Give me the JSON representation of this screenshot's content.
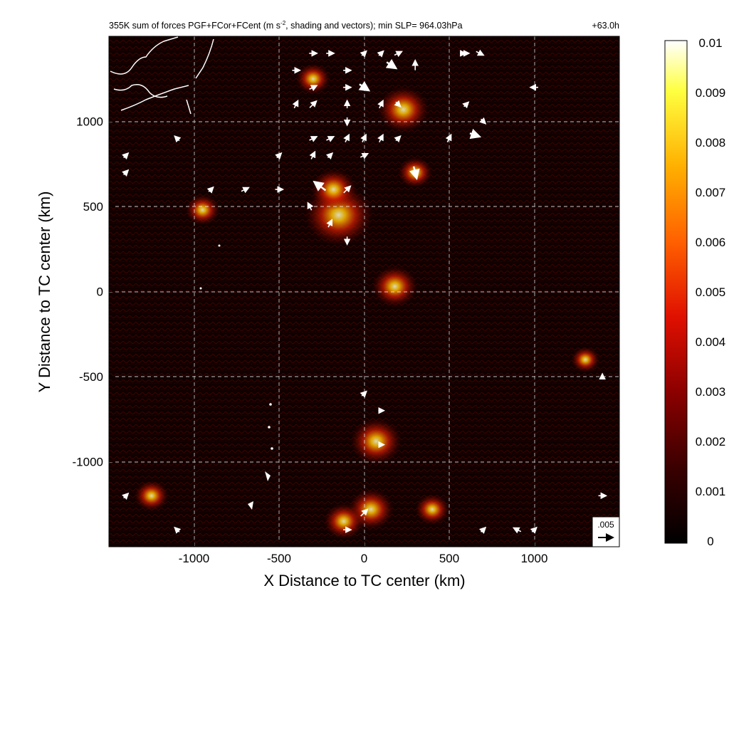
{
  "chart_data": {
    "type": "heatmap",
    "title": "355K sum of forces PGF+FCor+FCent (m s",
    "title_superscript": "-2",
    "title_rest": ", shading and vectors); min SLP= 964.03hPa",
    "forecast_hour": "+63.0h",
    "xlabel": "X Distance to TC center (km)",
    "ylabel": "Y Distance to TC center (km)",
    "xlim": [
      -1500,
      1500
    ],
    "ylim": [
      -1500,
      1500
    ],
    "x_ticks": [
      -1000,
      -500,
      0,
      500,
      1000
    ],
    "y_ticks": [
      1000,
      500,
      0,
      -500,
      -1000
    ],
    "grid": true,
    "colorbar": {
      "min": 0,
      "max": 0.01,
      "ticks": [
        "0.01",
        "0.009",
        "0.008",
        "0.007",
        "0.006",
        "0.005",
        "0.004",
        "0.003",
        "0.002",
        "0.001",
        "0"
      ]
    },
    "reference_vector_label": ".005",
    "hotspots": [
      {
        "x": -150,
        "y": 450,
        "v": 0.01
      },
      {
        "x": -180,
        "y": 600,
        "v": 0.006
      },
      {
        "x": 230,
        "y": 1070,
        "v": 0.007
      },
      {
        "x": 180,
        "y": 30,
        "v": 0.006
      },
      {
        "x": 70,
        "y": -880,
        "v": 0.007
      },
      {
        "x": 40,
        "y": -1280,
        "v": 0.006
      },
      {
        "x": -120,
        "y": -1350,
        "v": 0.005
      },
      {
        "x": 400,
        "y": -1280,
        "v": 0.004
      },
      {
        "x": -1250,
        "y": -1200,
        "v": 0.004
      },
      {
        "x": -950,
        "y": 480,
        "v": 0.004
      },
      {
        "x": 300,
        "y": 700,
        "v": 0.004
      },
      {
        "x": -300,
        "y": 1250,
        "v": 0.004
      },
      {
        "x": 1300,
        "y": -400,
        "v": 0.003
      }
    ],
    "vectors": [
      {
        "x": -300,
        "y": 1400,
        "u": 2,
        "v": 0
      },
      {
        "x": -200,
        "y": 1400,
        "u": 2,
        "v": 0
      },
      {
        "x": 0,
        "y": 1400,
        "u": 1,
        "v": 1
      },
      {
        "x": 100,
        "y": 1400,
        "u": 1,
        "v": 1
      },
      {
        "x": 200,
        "y": 1400,
        "u": 2,
        "v": 1
      },
      {
        "x": 300,
        "y": 1330,
        "u": 0,
        "v": 3
      },
      {
        "x": 160,
        "y": 1330,
        "u": 3,
        "v": -2
      },
      {
        "x": 580,
        "y": 1400,
        "u": 1,
        "v": 0
      },
      {
        "x": 600,
        "y": 1400,
        "u": 1,
        "v": 0
      },
      {
        "x": 680,
        "y": 1400,
        "u": 2,
        "v": -1
      },
      {
        "x": 1000,
        "y": 1200,
        "u": -2,
        "v": 0
      },
      {
        "x": -400,
        "y": 1300,
        "u": 2,
        "v": 0
      },
      {
        "x": -100,
        "y": 1300,
        "u": 2,
        "v": 0
      },
      {
        "x": -300,
        "y": 1200,
        "u": 2,
        "v": 1
      },
      {
        "x": 0,
        "y": 1200,
        "u": 3,
        "v": -2
      },
      {
        "x": -100,
        "y": 1200,
        "u": 2,
        "v": 0
      },
      {
        "x": -400,
        "y": 1100,
        "u": 1,
        "v": 2
      },
      {
        "x": -300,
        "y": 1100,
        "u": 2,
        "v": 2
      },
      {
        "x": -100,
        "y": 1100,
        "u": 0,
        "v": 2
      },
      {
        "x": 100,
        "y": 1100,
        "u": 1,
        "v": 2
      },
      {
        "x": 200,
        "y": 1100,
        "u": 1,
        "v": -1
      },
      {
        "x": 600,
        "y": 1100,
        "u": 1,
        "v": 1
      },
      {
        "x": 700,
        "y": 1000,
        "u": 1,
        "v": -1
      },
      {
        "x": 650,
        "y": 920,
        "u": 3,
        "v": -1
      },
      {
        "x": -100,
        "y": 1000,
        "u": 0,
        "v": -2
      },
      {
        "x": -300,
        "y": 900,
        "u": 2,
        "v": 1
      },
      {
        "x": -200,
        "y": 900,
        "u": 2,
        "v": 1
      },
      {
        "x": -100,
        "y": 900,
        "u": 1,
        "v": 2
      },
      {
        "x": 0,
        "y": 900,
        "u": 1,
        "v": 2
      },
      {
        "x": 100,
        "y": 900,
        "u": 1,
        "v": 2
      },
      {
        "x": 200,
        "y": 900,
        "u": 1,
        "v": 1
      },
      {
        "x": 500,
        "y": 900,
        "u": 1,
        "v": 2
      },
      {
        "x": 300,
        "y": 700,
        "u": 1,
        "v": -4
      },
      {
        "x": -300,
        "y": 800,
        "u": 1,
        "v": 2
      },
      {
        "x": -200,
        "y": 800,
        "u": 1,
        "v": 1
      },
      {
        "x": 0,
        "y": 800,
        "u": 2,
        "v": 1
      },
      {
        "x": -500,
        "y": 800,
        "u": 1,
        "v": 1
      },
      {
        "x": -260,
        "y": 620,
        "u": -4,
        "v": 3
      },
      {
        "x": -100,
        "y": 600,
        "u": 2,
        "v": 2
      },
      {
        "x": -320,
        "y": 500,
        "u": -1,
        "v": 2
      },
      {
        "x": -200,
        "y": 400,
        "u": 1,
        "v": 2
      },
      {
        "x": -100,
        "y": 300,
        "u": 0,
        "v": -2
      },
      {
        "x": -500,
        "y": 600,
        "u": 2,
        "v": 0
      },
      {
        "x": -700,
        "y": 600,
        "u": 2,
        "v": 1
      },
      {
        "x": -900,
        "y": 600,
        "u": 1,
        "v": 1
      },
      {
        "x": -1400,
        "y": 700,
        "u": 1,
        "v": 1
      },
      {
        "x": 100,
        "y": -700,
        "u": 1,
        "v": 0
      },
      {
        "x": 0,
        "y": -600,
        "u": 1,
        "v": 1
      },
      {
        "x": 100,
        "y": -900,
        "u": 1,
        "v": 0
      },
      {
        "x": 0,
        "y": -1300,
        "u": 2,
        "v": 2
      },
      {
        "x": -100,
        "y": -1400,
        "u": 2,
        "v": 0
      },
      {
        "x": 900,
        "y": -1400,
        "u": -2,
        "v": 1
      },
      {
        "x": 1000,
        "y": -1400,
        "u": 1,
        "v": 1
      },
      {
        "x": 700,
        "y": -1400,
        "u": 1,
        "v": 1
      },
      {
        "x": 1400,
        "y": -1200,
        "u": 2,
        "v": 0
      },
      {
        "x": -1100,
        "y": -1400,
        "u": -1,
        "v": 1
      },
      {
        "x": -1400,
        "y": -1200,
        "u": 1,
        "v": 1
      },
      {
        "x": -1400,
        "y": 800,
        "u": 1,
        "v": 1
      },
      {
        "x": -1100,
        "y": 900,
        "u": -1,
        "v": 1
      },
      {
        "x": 1400,
        "y": -500,
        "u": 0,
        "v": 1
      }
    ]
  }
}
